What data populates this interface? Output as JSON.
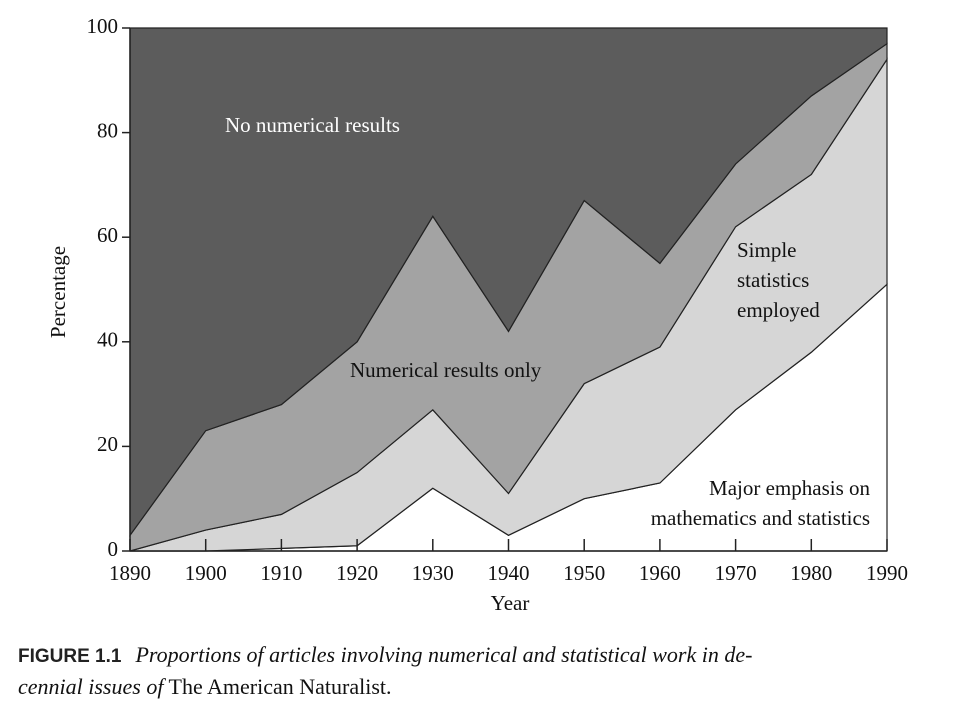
{
  "chart_data": {
    "type": "stacked_area",
    "x": [
      1890,
      1900,
      1910,
      1920,
      1930,
      1940,
      1950,
      1960,
      1970,
      1980,
      1990
    ],
    "series": [
      {
        "name": "Major emphasis on\nmathematics and statistics",
        "color": "#ffffff",
        "values": [
          0,
          0,
          0.5,
          1,
          12,
          3,
          10,
          13,
          27,
          38,
          51
        ]
      },
      {
        "name": "Simple\nstatistics\nemployed",
        "color": "#d6d6d6",
        "values": [
          0,
          4,
          6.5,
          14,
          15,
          8,
          22,
          26,
          35,
          34,
          43
        ]
      },
      {
        "name": "Numerical results only",
        "color": "#a3a3a3",
        "values": [
          3,
          19,
          21,
          25,
          37,
          31,
          35,
          16,
          12,
          15,
          3
        ]
      },
      {
        "name": "No numerical results",
        "color": "#5c5c5c",
        "values": [
          97,
          77,
          72,
          60,
          36,
          58,
          33,
          45,
          26,
          13,
          3
        ]
      }
    ],
    "xlabel": "Year",
    "ylabel": "Percentage",
    "xlim": [
      1890,
      1990
    ],
    "ylim": [
      0,
      100
    ],
    "xticks": [
      1890,
      1900,
      1910,
      1920,
      1930,
      1940,
      1950,
      1960,
      1970,
      1980,
      1990
    ],
    "yticks": [
      0,
      20,
      40,
      60,
      80,
      100
    ]
  },
  "caption": {
    "label": "FIGURE 1.1",
    "text": "Proportions of articles involving numerical and statistical work in de-\ncennial issues of",
    "source": "The American Naturalist."
  }
}
